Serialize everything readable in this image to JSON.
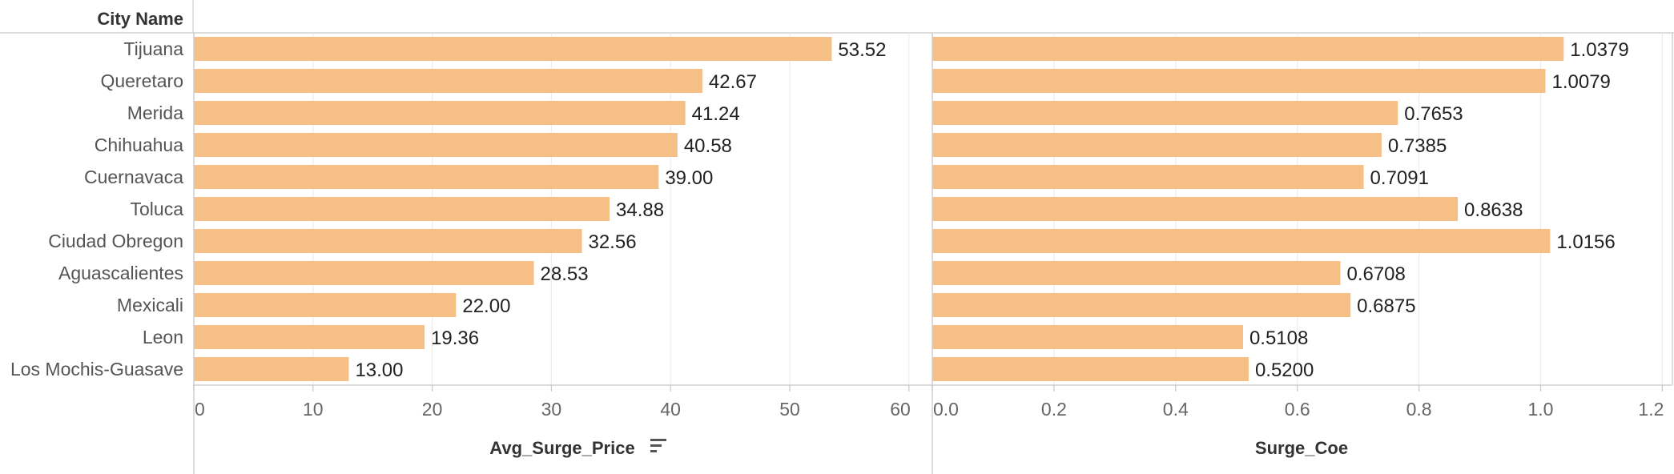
{
  "row_header": "City Name",
  "chart_data": [
    {
      "type": "bar",
      "orientation": "horizontal",
      "categories": [
        "Tijuana",
        "Queretaro",
        "Merida",
        "Chihuahua",
        "Cuernavaca",
        "Toluca",
        "Ciudad Obregon",
        "Aguascalientes",
        "Mexicali",
        "Leon",
        "Los Mochis-Guasave"
      ],
      "values": [
        53.52,
        42.67,
        41.24,
        40.58,
        39.0,
        34.88,
        32.56,
        28.53,
        22.0,
        19.36,
        13.0
      ],
      "value_labels": [
        "53.52",
        "42.67",
        "41.24",
        "40.58",
        "39.00",
        "34.88",
        "32.56",
        "28.53",
        "22.00",
        "19.36",
        "13.00"
      ],
      "xlabel": "Avg_Surge_Price",
      "sort_indicator": "sort-descending-icon",
      "xlim": [
        0,
        60
      ],
      "ticks": [
        0,
        10,
        20,
        30,
        40,
        50,
        60
      ],
      "tick_labels": [
        "0",
        "10",
        "20",
        "30",
        "40",
        "50",
        "60"
      ],
      "bar_color": "#f6bf85",
      "grid": true
    },
    {
      "type": "bar",
      "orientation": "horizontal",
      "categories": [
        "Tijuana",
        "Queretaro",
        "Merida",
        "Chihuahua",
        "Cuernavaca",
        "Toluca",
        "Ciudad Obregon",
        "Aguascalientes",
        "Mexicali",
        "Leon",
        "Los Mochis-Guasave"
      ],
      "values": [
        1.0379,
        1.0079,
        0.7653,
        0.7385,
        0.7091,
        0.8638,
        1.0156,
        0.6708,
        0.6875,
        0.5108,
        0.52
      ],
      "value_labels": [
        "1.0379",
        "1.0079",
        "0.7653",
        "0.7385",
        "0.7091",
        "0.8638",
        "1.0156",
        "0.6708",
        "0.6875",
        "0.5108",
        "0.5200"
      ],
      "xlabel": "Surge_Coe",
      "xlim": [
        0,
        1.2
      ],
      "ticks": [
        0,
        0.2,
        0.4,
        0.6,
        0.8,
        1.0,
        1.2
      ],
      "tick_labels": [
        "0.0",
        "0.2",
        "0.4",
        "0.6",
        "0.8",
        "1.0",
        "1.2"
      ],
      "bar_color": "#f6bf85",
      "grid": true
    }
  ]
}
